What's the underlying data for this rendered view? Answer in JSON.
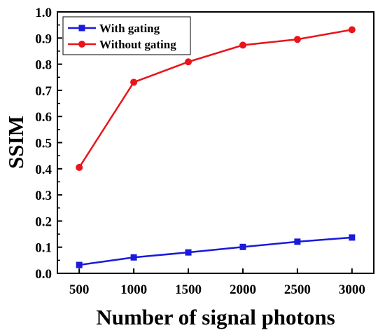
{
  "chart_data": {
    "type": "line",
    "xlabel": "Number of signal photons",
    "ylabel": "SSIM",
    "x": [
      500,
      1000,
      1500,
      2000,
      2500,
      3000
    ],
    "xticks": [
      "500",
      "1000",
      "1500",
      "2000",
      "2500",
      "3000"
    ],
    "yticks": [
      "0.0",
      "0.1",
      "0.2",
      "0.3",
      "0.4",
      "0.5",
      "0.6",
      "0.7",
      "0.8",
      "0.9",
      "1.0"
    ],
    "xlim": [
      300,
      3200
    ],
    "ylim": [
      0,
      1.0
    ],
    "grid": false,
    "legend_position": "top-left",
    "series": [
      {
        "name": "With gating",
        "color": "#1a1adb",
        "marker": "square",
        "values": [
          0.032,
          0.061,
          0.08,
          0.101,
          0.121,
          0.137
        ]
      },
      {
        "name": "Without gating",
        "color": "#e8161b",
        "marker": "circle",
        "values": [
          0.405,
          0.731,
          0.809,
          0.873,
          0.895,
          0.932
        ]
      }
    ]
  }
}
